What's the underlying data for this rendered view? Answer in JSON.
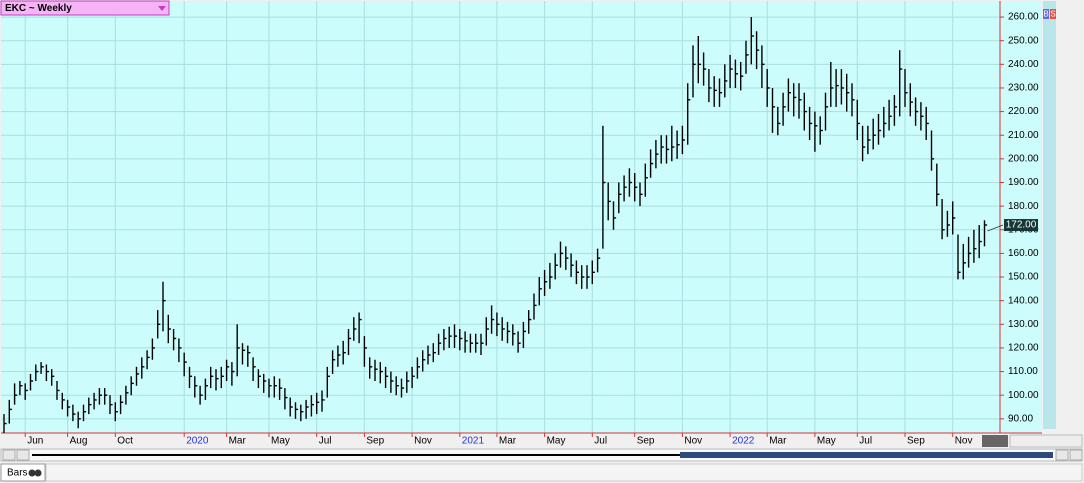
{
  "chart_data": {
    "type": "ohlc",
    "title": "EKC ~ Weekly",
    "categories": [
      null,
      null,
      null,
      null,
      "Jun",
      null,
      null,
      null,
      null,
      null,
      null,
      null,
      "Aug",
      null,
      null,
      null,
      null,
      null,
      null,
      null,
      null,
      "Oct",
      null,
      null,
      null,
      null,
      null,
      null,
      null,
      null,
      null,
      null,
      null,
      null,
      "2020",
      null,
      null,
      null,
      null,
      null,
      null,
      null,
      "Mar",
      null,
      null,
      null,
      null,
      null,
      null,
      null,
      "May",
      null,
      null,
      null,
      null,
      null,
      null,
      null,
      null,
      "Jul",
      null,
      null,
      null,
      null,
      null,
      null,
      null,
      null,
      "Sep",
      null,
      null,
      null,
      null,
      null,
      null,
      null,
      null,
      "Nov",
      null,
      null,
      null,
      null,
      null,
      null,
      null,
      null,
      "2021",
      null,
      null,
      null,
      null,
      null,
      null,
      "Mar",
      null,
      null,
      null,
      null,
      null,
      null,
      null,
      null,
      "May",
      null,
      null,
      null,
      null,
      null,
      null,
      null,
      null,
      "Jul",
      null,
      null,
      null,
      null,
      null,
      null,
      null,
      "Sep",
      null,
      null,
      null,
      null,
      null,
      null,
      null,
      null,
      "Nov",
      null,
      null,
      null,
      null,
      null,
      null,
      null,
      null,
      "2022",
      null,
      null,
      null,
      null,
      null,
      null,
      "Mar",
      null,
      null,
      null,
      null,
      null,
      null,
      null,
      null,
      "May",
      null,
      null,
      null,
      null,
      null,
      null,
      null,
      "Jul",
      null,
      null,
      null,
      null,
      null,
      null,
      null,
      null,
      "Sep",
      null,
      null,
      null,
      null,
      null,
      null,
      null,
      null,
      "Nov",
      null,
      null,
      null,
      null,
      null,
      null
    ],
    "high": [
      92,
      98,
      105,
      106,
      105,
      109,
      113,
      114,
      113,
      111,
      106,
      101,
      98,
      96,
      93,
      96,
      99,
      101,
      103,
      103,
      100,
      97,
      100,
      104,
      108,
      112,
      116,
      119,
      124,
      136,
      148,
      134,
      128,
      124,
      118,
      112,
      108,
      104,
      107,
      112,
      111,
      112,
      115,
      114,
      130,
      122,
      121,
      116,
      111,
      109,
      107,
      108,
      107,
      103,
      99,
      97,
      96,
      98,
      100,
      101,
      102,
      112,
      119,
      121,
      123,
      128,
      133,
      135,
      125,
      116,
      115,
      114,
      112,
      110,
      108,
      107,
      110,
      112,
      116,
      119,
      121,
      122,
      126,
      128,
      129,
      130,
      128,
      127,
      126,
      126,
      126,
      133,
      138,
      135,
      133,
      131,
      130,
      127,
      131,
      136,
      143,
      150,
      153,
      156,
      160,
      165,
      163,
      160,
      157,
      155,
      155,
      157,
      162,
      214,
      190,
      182,
      190,
      193,
      196,
      194,
      190,
      198,
      204,
      208,
      210,
      210,
      214,
      212,
      214,
      232,
      248,
      252,
      245,
      238,
      235,
      234,
      240,
      244,
      242,
      241,
      250,
      260,
      254,
      248,
      238,
      230,
      222,
      228,
      234,
      232,
      232,
      228,
      222,
      220,
      218,
      228,
      241,
      238,
      238,
      236,
      232,
      225,
      214,
      214,
      217,
      219,
      222,
      225,
      227,
      246,
      238,
      232,
      226,
      224,
      222,
      212,
      198,
      183,
      178,
      182,
      168,
      164,
      167,
      170,
      172,
      174
    ],
    "low": [
      84,
      88,
      96,
      100,
      98,
      102,
      106,
      109,
      106,
      104,
      98,
      94,
      91,
      89,
      86,
      89,
      92,
      94,
      96,
      96,
      92,
      89,
      92,
      96,
      100,
      104,
      107,
      111,
      115,
      124,
      127,
      122,
      119,
      114,
      108,
      103,
      99,
      96,
      98,
      103,
      102,
      103,
      106,
      104,
      108,
      113,
      112,
      106,
      103,
      101,
      99,
      99,
      98,
      94,
      91,
      90,
      89,
      90,
      91,
      92,
      93,
      99,
      109,
      112,
      113,
      117,
      123,
      122,
      112,
      107,
      106,
      105,
      103,
      101,
      100,
      99,
      101,
      103,
      107,
      110,
      113,
      114,
      117,
      119,
      120,
      120,
      119,
      118,
      118,
      118,
      117,
      121,
      126,
      125,
      123,
      122,
      121,
      118,
      120,
      126,
      132,
      138,
      142,
      145,
      149,
      154,
      153,
      150,
      147,
      145,
      145,
      147,
      152,
      162,
      174,
      170,
      177,
      182,
      184,
      182,
      180,
      184,
      192,
      196,
      198,
      198,
      199,
      200,
      202,
      206,
      226,
      232,
      231,
      224,
      222,
      222,
      226,
      230,
      230,
      229,
      236,
      240,
      238,
      230,
      222,
      211,
      210,
      214,
      220,
      218,
      217,
      212,
      208,
      203,
      206,
      212,
      222,
      222,
      223,
      220,
      218,
      208,
      199,
      202,
      204,
      206,
      209,
      212,
      214,
      218,
      222,
      218,
      214,
      212,
      208,
      195,
      180,
      166,
      167,
      168,
      149,
      149,
      154,
      156,
      158,
      163
    ],
    "close": [
      88,
      94,
      100,
      104,
      102,
      106,
      110,
      112,
      110,
      108,
      102,
      98,
      95,
      92,
      90,
      93,
      96,
      98,
      100,
      100,
      96,
      93,
      97,
      101,
      105,
      109,
      112,
      116,
      120,
      130,
      140,
      128,
      124,
      120,
      114,
      108,
      104,
      100,
      104,
      108,
      107,
      108,
      112,
      110,
      120,
      119,
      118,
      112,
      108,
      106,
      104,
      104,
      103,
      99,
      95,
      94,
      93,
      95,
      96,
      97,
      98,
      108,
      115,
      117,
      118,
      124,
      128,
      132,
      120,
      112,
      111,
      110,
      108,
      106,
      104,
      103,
      106,
      108,
      112,
      115,
      117,
      118,
      122,
      124,
      125,
      125,
      124,
      123,
      122,
      122,
      122,
      128,
      132,
      130,
      128,
      127,
      126,
      122,
      127,
      132,
      138,
      145,
      148,
      150,
      155,
      160,
      158,
      155,
      152,
      150,
      150,
      152,
      158,
      190,
      182,
      175,
      185,
      188,
      190,
      188,
      185,
      192,
      198,
      202,
      205,
      204,
      205,
      206,
      208,
      225,
      240,
      240,
      238,
      230,
      229,
      228,
      233,
      238,
      236,
      235,
      244,
      252,
      246,
      240,
      230,
      222,
      215,
      222,
      228,
      226,
      225,
      220,
      215,
      214,
      212,
      222,
      230,
      231,
      230,
      228,
      225,
      215,
      205,
      208,
      210,
      212,
      215,
      218,
      222,
      238,
      228,
      224,
      220,
      218,
      215,
      200,
      185,
      170,
      172,
      175,
      152,
      156,
      160,
      162,
      165,
      172
    ],
    "color": "#000000",
    "ylim": [
      84,
      266.8
    ],
    "yticks": [
      {
        "value": 90,
        "label": "90.00"
      },
      {
        "value": 100,
        "label": "100.00"
      },
      {
        "value": 110,
        "label": "110.00"
      },
      {
        "value": 120,
        "label": "120.00"
      },
      {
        "value": 130,
        "label": "130.00"
      },
      {
        "value": 140,
        "label": "140.00"
      },
      {
        "value": 150,
        "label": "150.00"
      },
      {
        "value": 160,
        "label": "160.00"
      },
      {
        "value": 170,
        "label": "170.00"
      },
      {
        "value": 180,
        "label": "180.00"
      },
      {
        "value": 190,
        "label": "190.00"
      },
      {
        "value": 200,
        "label": "200.00"
      },
      {
        "value": 210,
        "label": "210.00"
      },
      {
        "value": 220,
        "label": "220.00"
      },
      {
        "value": 230,
        "label": "230.00"
      },
      {
        "value": 240,
        "label": "240.00"
      },
      {
        "value": 250,
        "label": "250.00"
      },
      {
        "value": 260,
        "label": "260.00"
      }
    ],
    "grid": true,
    "last_close_label": "172.00"
  },
  "ui": {
    "tab": "Bars",
    "badges": [
      "B",
      "S"
    ]
  }
}
